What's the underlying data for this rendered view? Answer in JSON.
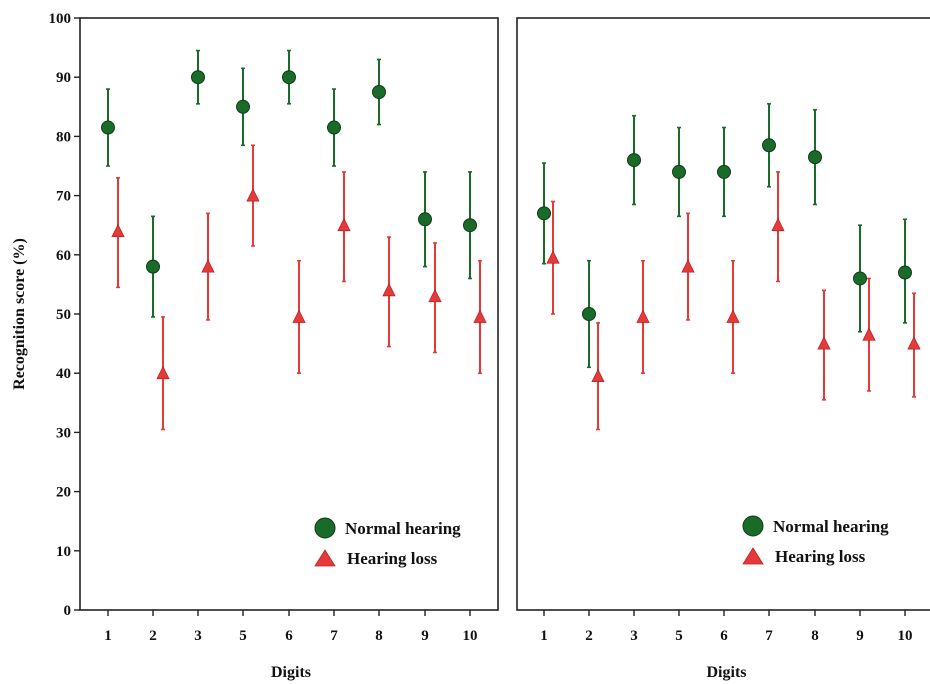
{
  "chart_data": [
    {
      "type": "scatter",
      "panel": "left",
      "xlabel": "Digits",
      "ylabel": "Recognition score (%)",
      "ylim": [
        0,
        100
      ],
      "yticks": [
        0,
        10,
        20,
        30,
        40,
        50,
        60,
        70,
        80,
        90,
        100
      ],
      "categories": [
        "1",
        "2",
        "3",
        "5",
        "6",
        "7",
        "8",
        "9",
        "10"
      ],
      "legend_position": "bottom-right",
      "grid": false,
      "series": [
        {
          "name": "Normal hearing",
          "marker": "circle",
          "color": "#1a6b2a",
          "values": [
            81.5,
            58,
            90,
            85,
            90,
            81.5,
            87.5,
            66,
            65
          ],
          "err_low": [
            75,
            49.5,
            85.5,
            78.5,
            85.5,
            75,
            82,
            58,
            56
          ],
          "err_high": [
            88,
            66.5,
            94.5,
            91.5,
            94.5,
            88,
            93,
            74,
            74
          ]
        },
        {
          "name": "Hearing loss",
          "marker": "triangle",
          "color": "#e53a3a",
          "values": [
            64,
            40,
            58,
            70,
            49.5,
            65,
            54,
            53,
            49.5
          ],
          "err_low": [
            54.5,
            30.5,
            49,
            61.5,
            40,
            55.5,
            44.5,
            43.5,
            40
          ],
          "err_high": [
            73,
            49.5,
            67,
            78.5,
            59,
            74,
            63,
            62,
            59
          ]
        }
      ]
    },
    {
      "type": "scatter",
      "panel": "right",
      "xlabel": "Digits",
      "ylabel": "",
      "ylim": [
        0,
        100
      ],
      "categories": [
        "1",
        "2",
        "3",
        "5",
        "6",
        "7",
        "8",
        "9",
        "10"
      ],
      "legend_position": "bottom-right",
      "grid": false,
      "series": [
        {
          "name": "Normal hearing",
          "marker": "circle",
          "color": "#1a6b2a",
          "values": [
            67,
            50,
            76,
            74,
            74,
            78.5,
            76.5,
            56,
            57
          ],
          "err_low": [
            58.5,
            41,
            68.5,
            66.5,
            66.5,
            71.5,
            68.5,
            47,
            48.5
          ],
          "err_high": [
            75.5,
            59,
            83.5,
            81.5,
            81.5,
            85.5,
            84.5,
            65,
            66
          ]
        },
        {
          "name": "Hearing loss",
          "marker": "triangle",
          "color": "#e53a3a",
          "values": [
            59.5,
            39.5,
            49.5,
            58,
            49.5,
            65,
            45,
            46.5,
            45
          ],
          "err_low": [
            50,
            30.5,
            40,
            49,
            40,
            55.5,
            35.5,
            37,
            36
          ],
          "err_high": [
            69,
            48.5,
            59,
            67,
            59,
            74,
            54,
            56,
            53.5
          ]
        }
      ]
    }
  ]
}
